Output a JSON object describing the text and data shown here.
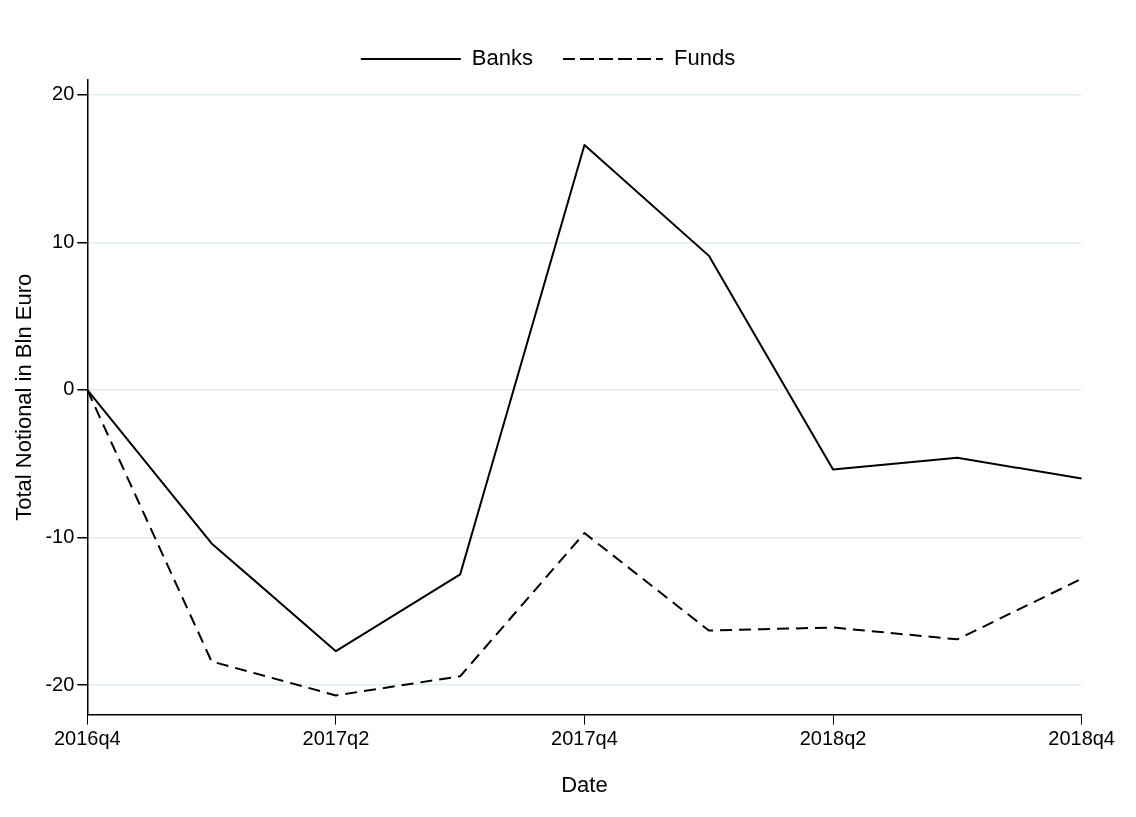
{
  "chart_data": {
    "type": "line",
    "xlabel": "Date",
    "ylabel": "Total Notional in Bln Euro",
    "categories": [
      "2016q4",
      null,
      "2017q2",
      null,
      "2017q4",
      null,
      "2018q2",
      null,
      "2018q4"
    ],
    "series": [
      {
        "name": "Banks",
        "color": "#000000",
        "line_style": "solid",
        "values": [
          0,
          -10.4,
          -17.7,
          -12.5,
          16.6,
          9.1,
          -5.4,
          -4.6,
          -6.0
        ]
      },
      {
        "name": "Funds",
        "color": "#000000",
        "line_style": "dashed",
        "values": [
          0,
          -18.4,
          -20.7,
          -19.4,
          -9.7,
          -16.3,
          -16.1,
          -16.9,
          -12.8
        ]
      }
    ],
    "ylim": [
      -22,
      21
    ],
    "yticks": [
      -20,
      -10,
      0,
      10,
      20
    ],
    "grid": "y",
    "legend": "top",
    "marker": "none"
  }
}
